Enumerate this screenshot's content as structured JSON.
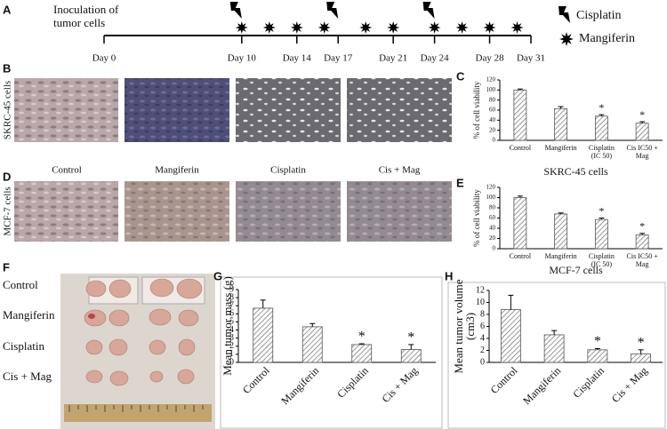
{
  "panel_labels": [
    "A",
    "B",
    "C",
    "D",
    "E",
    "F",
    "G",
    "H"
  ],
  "timeline": {
    "start_label": [
      "Inoculation of",
      "tumor cells"
    ],
    "days": [
      {
        "value": 0,
        "label": "Day 0"
      },
      {
        "value": 10,
        "label": "Day 10"
      },
      {
        "value": 14,
        "label": "Day 14"
      },
      {
        "value": 17,
        "label": "Day 17"
      },
      {
        "value": 21,
        "label": "Day 21"
      },
      {
        "value": 24,
        "label": "Day 24"
      },
      {
        "value": 28,
        "label": "Day 28"
      },
      {
        "value": 31,
        "label": "Day 31"
      }
    ],
    "range": [
      0,
      31
    ],
    "cisplatin_days": [
      10,
      17,
      24
    ],
    "mangiferin_days": [
      10,
      12,
      14,
      16,
      19,
      21,
      24,
      26,
      28,
      30
    ],
    "legend": [
      "Cisplatin",
      "Mangiferin"
    ]
  },
  "image_rows": [
    "SKRC-45 cells",
    "MCF-7 cells"
  ],
  "treatments": [
    "Control",
    "Mangiferin",
    "Cisplatin",
    "Cis + Mag"
  ],
  "tumor_rows": [
    "Control",
    "Mangiferin",
    "Cisplatin",
    "Cis + Mag"
  ],
  "chart_data": [
    {
      "type": "bar",
      "title": "SKRC-45 cells",
      "y_label": [
        "% of cell viability"
      ],
      "categories": [
        [
          "Control"
        ],
        [
          "Mangiferin"
        ],
        [
          "Cisplatin",
          "(IC 50)"
        ],
        [
          "Cis IC50 +",
          "Mag"
        ]
      ],
      "values": [
        100,
        63,
        48,
        34
      ],
      "errors": [
        2,
        4,
        3,
        3
      ],
      "color": "#555555",
      "ylim": [
        0,
        120
      ],
      "yticks": [
        0,
        20,
        40,
        60,
        80,
        100,
        120
      ],
      "annotations": [
        {
          "text": "*",
          "category": 2
        },
        {
          "text": "*",
          "category": 3
        }
      ]
    },
    {
      "type": "bar",
      "title": "MCF-7 cells",
      "y_label": [
        "% of cell viability"
      ],
      "categories": [
        [
          "Control"
        ],
        [
          "Mangiferin"
        ],
        [
          "Cisplatin",
          "(IC 50)"
        ],
        [
          "Cis IC50 +",
          "Mag"
        ]
      ],
      "values": [
        100,
        68,
        57,
        27
      ],
      "errors": [
        3,
        2,
        3,
        3
      ],
      "color": "#555555",
      "ylim": [
        0,
        120
      ],
      "yticks": [
        0,
        20,
        40,
        60,
        80,
        100,
        120
      ],
      "annotations": [
        {
          "text": "*",
          "category": 2
        },
        {
          "text": "*",
          "category": 3
        }
      ]
    },
    {
      "type": "bar",
      "y_label": [
        "Mean tumor mass (g)"
      ],
      "categories": [
        [
          "Control"
        ],
        [
          "Mangiferin"
        ],
        [
          "Cisplatin"
        ],
        [
          "Cis + Mag"
        ]
      ],
      "values": [
        6.7,
        4.4,
        2.2,
        1.6
      ],
      "errors": [
        1.0,
        0.4,
        0.1,
        0.6
      ],
      "color": "#555555",
      "ylim": [
        0,
        9
      ],
      "yticks": [
        0,
        1,
        2,
        3,
        4,
        5,
        6,
        7,
        8,
        9
      ],
      "annotations": [
        {
          "text": "*",
          "category": 2
        },
        {
          "text": "*",
          "category": 3
        }
      ]
    },
    {
      "type": "bar",
      "y_label": [
        "Mean tumor volume",
        "(cm3)"
      ],
      "categories": [
        [
          "Control"
        ],
        [
          "Mangiferin"
        ],
        [
          "Cisplatin"
        ],
        [
          "Cis + Mag"
        ]
      ],
      "values": [
        8.8,
        4.6,
        2.1,
        1.4
      ],
      "errors": [
        2.4,
        0.7,
        0.2,
        0.7
      ],
      "color": "#555555",
      "ylim": [
        0,
        12
      ],
      "yticks": [
        0,
        2,
        4,
        6,
        8,
        10,
        12
      ],
      "annotations": [
        {
          "text": "*",
          "category": 2
        },
        {
          "text": "*",
          "category": 3
        }
      ]
    }
  ]
}
